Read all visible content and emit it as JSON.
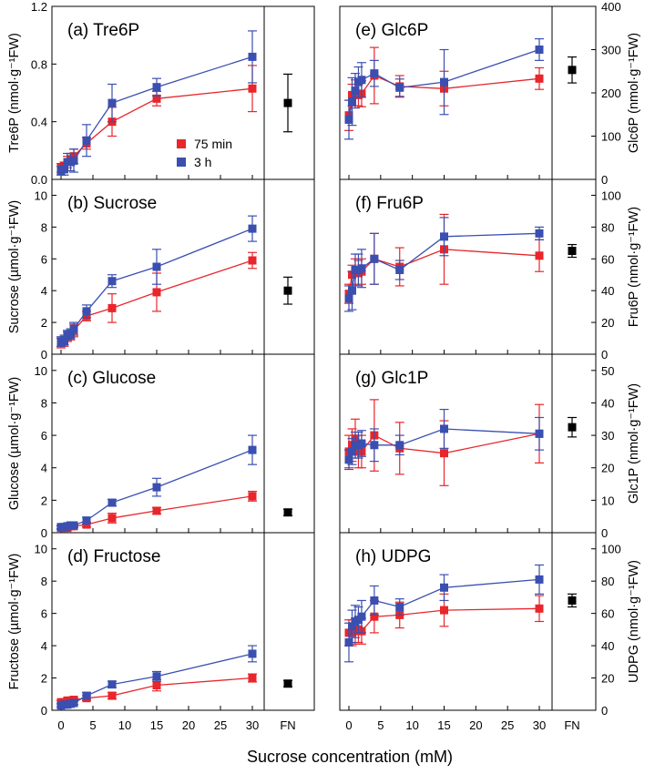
{
  "figure": {
    "xlabel": "Sucrose concentration (mM)",
    "x_ticks": [
      0,
      5,
      10,
      15,
      20,
      25,
      30
    ],
    "fn_label": "FN",
    "legend": [
      {
        "name": "75 min",
        "color": "#e8262b"
      },
      {
        "name": "3 h",
        "color": "#3a4fb0"
      }
    ],
    "colors": {
      "series_75min": "#e8262b",
      "series_3h": "#3a4fb0",
      "fn": "#000000"
    }
  },
  "chart_data": [
    {
      "type": "scatter",
      "panel": "a",
      "side": "left",
      "title": "(a) Tre6P",
      "ylabel": "Tre6P (nmol·g⁻¹FW)",
      "ylim": [
        0,
        1.2
      ],
      "yticks": [
        0,
        0.4,
        0.8,
        1.2
      ],
      "ytick_labels": [
        "0.0",
        "0.4",
        "0.8",
        "1.2"
      ],
      "x": [
        0,
        0.5,
        1,
        1.5,
        2,
        4,
        8,
        15,
        30
      ],
      "series": [
        {
          "name": "75 min",
          "values": [
            0.08,
            0.09,
            0.12,
            0.14,
            0.16,
            0.25,
            0.4,
            0.56,
            0.63
          ],
          "errors": [
            0.03,
            0.03,
            0.04,
            0.04,
            0.05,
            0.04,
            0.1,
            0.05,
            0.16
          ]
        },
        {
          "name": "3 h",
          "values": [
            0.06,
            0.07,
            0.12,
            0.12,
            0.13,
            0.27,
            0.53,
            0.64,
            0.85
          ],
          "errors": [
            0.03,
            0.04,
            0.06,
            0.06,
            0.08,
            0.11,
            0.13,
            0.06,
            0.18
          ]
        }
      ],
      "fn": {
        "value": 0.53,
        "error": 0.2
      }
    },
    {
      "type": "scatter",
      "panel": "b",
      "side": "left",
      "title": "(b) Sucrose",
      "ylabel": "Sucrose (µmol·g⁻¹FW)",
      "ylim": [
        0,
        11
      ],
      "yticks": [
        0,
        2,
        4,
        6,
        8,
        10
      ],
      "ytick_labels": [
        "0",
        "2",
        "4",
        "6",
        "8",
        "10"
      ],
      "x": [
        0,
        0.5,
        1,
        1.5,
        2,
        4,
        8,
        15,
        30
      ],
      "series": [
        {
          "name": "75 min",
          "values": [
            0.7,
            0.8,
            1.1,
            1.2,
            1.5,
            2.4,
            2.9,
            3.9,
            5.9
          ],
          "errors": [
            0.3,
            0.3,
            0.3,
            0.3,
            0.4,
            0.3,
            0.9,
            1.2,
            0.5
          ]
        },
        {
          "name": "3 h",
          "values": [
            0.8,
            0.9,
            1.2,
            1.3,
            1.6,
            2.7,
            4.6,
            5.5,
            7.9
          ],
          "errors": [
            0.3,
            0.3,
            0.3,
            0.3,
            0.4,
            0.4,
            0.4,
            1.1,
            0.8
          ]
        }
      ],
      "fn": {
        "value": 4.0,
        "error": 0.85
      }
    },
    {
      "type": "scatter",
      "panel": "c",
      "side": "left",
      "title": "(c) Glucose",
      "ylabel": "Glucose (µmol·g⁻¹FW)",
      "ylim": [
        0,
        11
      ],
      "yticks": [
        0,
        2,
        4,
        6,
        8,
        10
      ],
      "ytick_labels": [
        "0",
        "2",
        "4",
        "6",
        "8",
        "10"
      ],
      "x": [
        0,
        0.5,
        1,
        1.5,
        2,
        4,
        8,
        15,
        30
      ],
      "series": [
        {
          "name": "75 min",
          "values": [
            0.3,
            0.3,
            0.3,
            0.4,
            0.4,
            0.5,
            0.9,
            1.35,
            2.25
          ],
          "errors": [
            0.1,
            0.1,
            0.1,
            0.1,
            0.1,
            0.15,
            0.3,
            0.2,
            0.3
          ]
        },
        {
          "name": "3 h",
          "values": [
            0.35,
            0.35,
            0.4,
            0.45,
            0.45,
            0.75,
            1.85,
            2.8,
            5.1
          ],
          "errors": [
            0.1,
            0.1,
            0.1,
            0.1,
            0.1,
            0.2,
            0.2,
            0.55,
            0.9
          ]
        }
      ],
      "fn": {
        "value": 1.25,
        "error": 0.2
      }
    },
    {
      "type": "scatter",
      "panel": "d",
      "side": "left",
      "title": "(d) Fructose",
      "ylabel": "Fructose (µmol·g⁻¹FW)",
      "ylim": [
        0,
        11
      ],
      "yticks": [
        0,
        2,
        4,
        6,
        8,
        10
      ],
      "ytick_labels": [
        "0",
        "2",
        "4",
        "6",
        "8",
        "10"
      ],
      "x": [
        0,
        0.5,
        1,
        1.5,
        2,
        4,
        8,
        15,
        30
      ],
      "series": [
        {
          "name": "75 min",
          "values": [
            0.5,
            0.5,
            0.6,
            0.6,
            0.65,
            0.75,
            0.9,
            1.55,
            2.0
          ],
          "errors": [
            0.1,
            0.1,
            0.1,
            0.1,
            0.1,
            0.15,
            0.2,
            0.35,
            0.25
          ]
        },
        {
          "name": "3 h",
          "values": [
            0.3,
            0.35,
            0.35,
            0.4,
            0.45,
            0.9,
            1.6,
            2.1,
            3.5
          ],
          "errors": [
            0.1,
            0.1,
            0.1,
            0.1,
            0.1,
            0.2,
            0.2,
            0.3,
            0.5
          ]
        }
      ],
      "fn": {
        "value": 1.65,
        "error": 0.2
      }
    },
    {
      "type": "scatter",
      "panel": "e",
      "side": "right",
      "title": "(e) Glc6P",
      "ylabel": "Glc6P (nmol·g⁻¹FW)",
      "ylim": [
        0,
        400
      ],
      "yticks": [
        0,
        100,
        200,
        300,
        400
      ],
      "ytick_labels": [
        "0",
        "100",
        "200",
        "300",
        "400"
      ],
      "x": [
        0,
        0.5,
        1,
        1.5,
        2,
        4,
        8,
        15,
        30
      ],
      "series": [
        {
          "name": "75 min",
          "values": [
            148,
            195,
            200,
            195,
            198,
            240,
            215,
            210,
            233
          ],
          "errors": [
            35,
            25,
            30,
            25,
            30,
            65,
            25,
            40,
            25
          ]
        },
        {
          "name": "3 h",
          "values": [
            138,
            180,
            205,
            225,
            230,
            245,
            212,
            225,
            300
          ],
          "errors": [
            45,
            55,
            40,
            35,
            40,
            30,
            20,
            75,
            25
          ]
        }
      ],
      "fn": {
        "value": 253,
        "error": 30
      }
    },
    {
      "type": "scatter",
      "panel": "f",
      "side": "right",
      "title": "(f) Fru6P",
      "ylabel": "Fru6P (nmol·g⁻¹FW)",
      "ylim": [
        0,
        110
      ],
      "yticks": [
        0,
        20,
        40,
        60,
        80,
        100
      ],
      "ytick_labels": [
        "0",
        "20",
        "40",
        "60",
        "80",
        "100"
      ],
      "x": [
        0,
        0.5,
        1,
        1.5,
        2,
        4,
        8,
        15,
        30
      ],
      "series": [
        {
          "name": "75 min",
          "values": [
            38,
            50,
            52,
            51,
            52,
            60,
            55,
            66,
            62
          ],
          "errors": [
            6,
            6,
            8,
            8,
            8,
            16,
            12,
            22,
            10
          ]
        },
        {
          "name": "3 h",
          "values": [
            35,
            40,
            53,
            53,
            54,
            60,
            53,
            74,
            76
          ],
          "errors": [
            8,
            12,
            10,
            10,
            12,
            16,
            6,
            12,
            4
          ]
        }
      ],
      "fn": {
        "value": 65,
        "error": 4
      }
    },
    {
      "type": "scatter",
      "panel": "g",
      "side": "right",
      "title": "(g) Glc1P",
      "ylabel": "Glc1P (nmol·g⁻¹FW)",
      "ylim": [
        0,
        55
      ],
      "yticks": [
        0,
        10,
        20,
        30,
        40,
        50
      ],
      "ytick_labels": [
        "0",
        "10",
        "20",
        "30",
        "40",
        "50"
      ],
      "x": [
        0,
        0.5,
        1,
        1.5,
        2,
        4,
        8,
        15,
        30
      ],
      "series": [
        {
          "name": "75 min",
          "values": [
            25,
            27,
            29,
            25,
            25,
            30,
            26,
            24.5,
            30.5
          ],
          "errors": [
            5,
            5,
            6,
            5,
            5,
            11,
            8,
            10,
            9
          ]
        },
        {
          "name": "3 h",
          "values": [
            22.5,
            25,
            27,
            27,
            27.5,
            27,
            27,
            32,
            30.5
          ],
          "errors": [
            3,
            4,
            4,
            4,
            4,
            5,
            3,
            6,
            5
          ]
        }
      ],
      "fn": {
        "value": 32.5,
        "error": 3
      }
    },
    {
      "type": "scatter",
      "panel": "h",
      "side": "right",
      "title": "(h) UDPG",
      "ylabel": "UDPG (nmol·g⁻¹FW)",
      "ylim": [
        0,
        110
      ],
      "yticks": [
        0,
        20,
        40,
        60,
        80,
        100
      ],
      "ytick_labels": [
        "0",
        "20",
        "40",
        "60",
        "80",
        "100"
      ],
      "x": [
        0,
        0.5,
        1,
        1.5,
        2,
        4,
        8,
        15,
        30
      ],
      "series": [
        {
          "name": "75 min",
          "values": [
            48,
            48,
            49,
            50,
            49,
            58,
            59,
            62,
            63
          ],
          "errors": [
            8,
            8,
            8,
            8,
            8,
            10,
            8,
            10,
            8
          ]
        },
        {
          "name": "3 h",
          "values": [
            42,
            52,
            55,
            56,
            58,
            68,
            64,
            76,
            81
          ],
          "errors": [
            12,
            10,
            10,
            8,
            10,
            9,
            5,
            8,
            9
          ]
        }
      ],
      "fn": {
        "value": 68,
        "error": 4
      }
    }
  ]
}
